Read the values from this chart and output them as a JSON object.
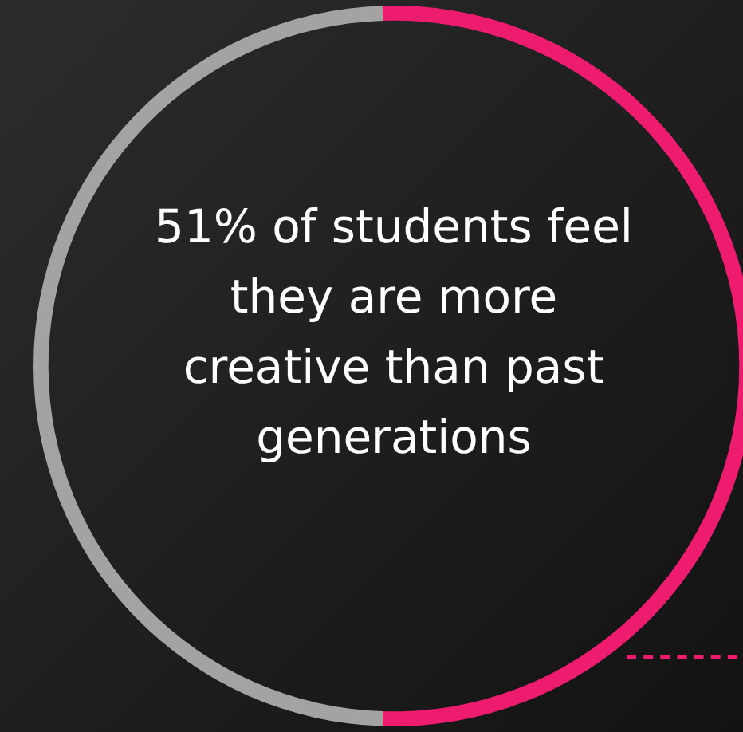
{
  "chart_data": {
    "type": "donut",
    "categories": [
      null,
      null
    ],
    "values": [
      51,
      49
    ],
    "colors": [
      "#ee1c6e",
      "#a3a3a3"
    ],
    "legend": false,
    "annotations": [
      "51% of students feel they are more creative than past generations"
    ]
  }
}
